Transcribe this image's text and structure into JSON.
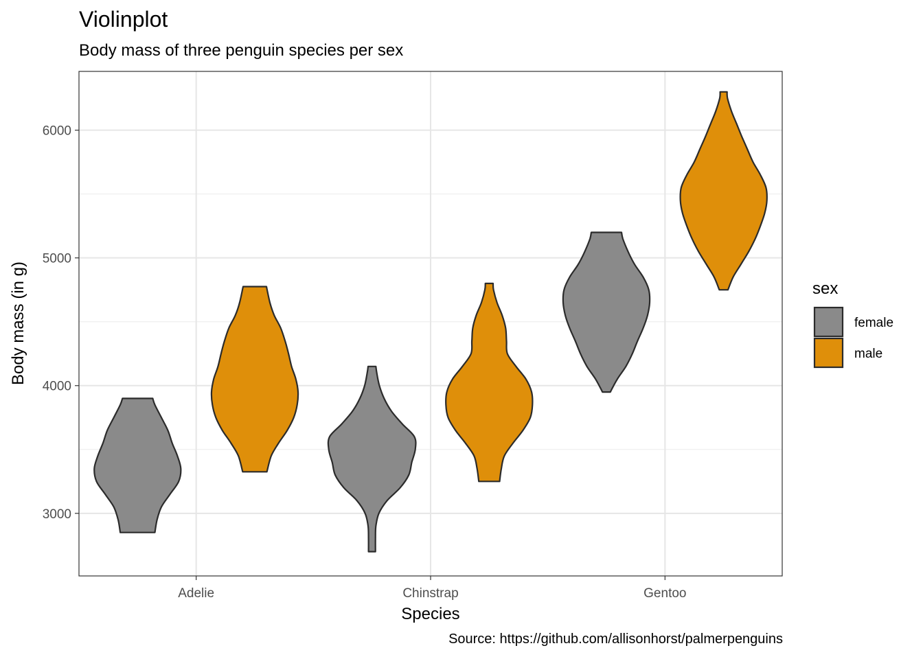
{
  "chart_data": {
    "type": "violin",
    "title": "Violinplot",
    "subtitle": "Body mass of three penguin species per sex",
    "caption": "Source: https://github.com/allisonhorst/palmerpenguins",
    "xlabel": "Species",
    "ylabel": "Body mass (in g)",
    "categories": [
      "Adelie",
      "Chinstrap",
      "Gentoo"
    ],
    "ylim": [
      2510,
      6460
    ],
    "yticks": [
      3000,
      4000,
      5000,
      6000
    ],
    "grid": true,
    "legend": {
      "title": "sex",
      "placement": "right",
      "entries": [
        {
          "name": "female",
          "color": "#8a8a8a"
        },
        {
          "name": "male",
          "color": "#df8f0a"
        }
      ]
    },
    "series": [
      {
        "name": "female",
        "color": "#8a8a8a",
        "violins": [
          {
            "category": "Adelie",
            "min": 2850,
            "max": 3900,
            "profile": [
              [
                2850,
                0.4
              ],
              [
                2950,
                0.45
              ],
              [
                3050,
                0.55
              ],
              [
                3150,
                0.75
              ],
              [
                3250,
                0.95
              ],
              [
                3350,
                1.0
              ],
              [
                3450,
                0.92
              ],
              [
                3550,
                0.8
              ],
              [
                3650,
                0.7
              ],
              [
                3750,
                0.55
              ],
              [
                3850,
                0.4
              ],
              [
                3900,
                0.35
              ]
            ]
          },
          {
            "category": "Chinstrap",
            "min": 2700,
            "max": 4150,
            "profile": [
              [
                2700,
                0.08
              ],
              [
                2800,
                0.08
              ],
              [
                2900,
                0.09
              ],
              [
                3000,
                0.16
              ],
              [
                3100,
                0.35
              ],
              [
                3200,
                0.65
              ],
              [
                3300,
                0.85
              ],
              [
                3400,
                0.92
              ],
              [
                3500,
                1.0
              ],
              [
                3600,
                0.98
              ],
              [
                3700,
                0.7
              ],
              [
                3800,
                0.45
              ],
              [
                3900,
                0.28
              ],
              [
                4000,
                0.17
              ],
              [
                4100,
                0.11
              ],
              [
                4150,
                0.09
              ]
            ]
          },
          {
            "category": "Gentoo",
            "min": 3950,
            "max": 5200,
            "profile": [
              [
                3950,
                0.09
              ],
              [
                4050,
                0.25
              ],
              [
                4150,
                0.45
              ],
              [
                4250,
                0.6
              ],
              [
                4350,
                0.72
              ],
              [
                4450,
                0.85
              ],
              [
                4550,
                0.95
              ],
              [
                4650,
                1.0
              ],
              [
                4750,
                0.98
              ],
              [
                4850,
                0.85
              ],
              [
                4950,
                0.65
              ],
              [
                5050,
                0.5
              ],
              [
                5150,
                0.38
              ],
              [
                5200,
                0.35
              ]
            ]
          }
        ]
      },
      {
        "name": "male",
        "color": "#df8f0a",
        "violins": [
          {
            "category": "Adelie",
            "min": 3325,
            "max": 4775,
            "profile": [
              [
                3325,
                0.28
              ],
              [
                3450,
                0.38
              ],
              [
                3550,
                0.55
              ],
              [
                3650,
                0.75
              ],
              [
                3750,
                0.9
              ],
              [
                3850,
                0.98
              ],
              [
                3950,
                1.0
              ],
              [
                4050,
                0.95
              ],
              [
                4150,
                0.85
              ],
              [
                4250,
                0.78
              ],
              [
                4350,
                0.7
              ],
              [
                4450,
                0.6
              ],
              [
                4550,
                0.45
              ],
              [
                4650,
                0.35
              ],
              [
                4775,
                0.27
              ]
            ]
          },
          {
            "category": "Chinstrap",
            "min": 3250,
            "max": 4800,
            "profile": [
              [
                3250,
                0.24
              ],
              [
                3350,
                0.28
              ],
              [
                3450,
                0.35
              ],
              [
                3550,
                0.55
              ],
              [
                3650,
                0.78
              ],
              [
                3750,
                0.95
              ],
              [
                3850,
                1.0
              ],
              [
                3950,
                0.98
              ],
              [
                4050,
                0.85
              ],
              [
                4150,
                0.62
              ],
              [
                4250,
                0.42
              ],
              [
                4350,
                0.4
              ],
              [
                4450,
                0.38
              ],
              [
                4550,
                0.3
              ],
              [
                4650,
                0.18
              ],
              [
                4750,
                0.1
              ],
              [
                4800,
                0.09
              ]
            ]
          },
          {
            "category": "Gentoo",
            "min": 4750,
            "max": 6300,
            "profile": [
              [
                4750,
                0.1
              ],
              [
                4850,
                0.22
              ],
              [
                4950,
                0.4
              ],
              [
                5050,
                0.58
              ],
              [
                5150,
                0.73
              ],
              [
                5250,
                0.85
              ],
              [
                5350,
                0.95
              ],
              [
                5450,
                1.0
              ],
              [
                5550,
                0.98
              ],
              [
                5650,
                0.85
              ],
              [
                5750,
                0.68
              ],
              [
                5850,
                0.55
              ],
              [
                5950,
                0.42
              ],
              [
                6050,
                0.3
              ],
              [
                6150,
                0.18
              ],
              [
                6250,
                0.09
              ],
              [
                6300,
                0.08
              ]
            ]
          }
        ]
      }
    ]
  }
}
